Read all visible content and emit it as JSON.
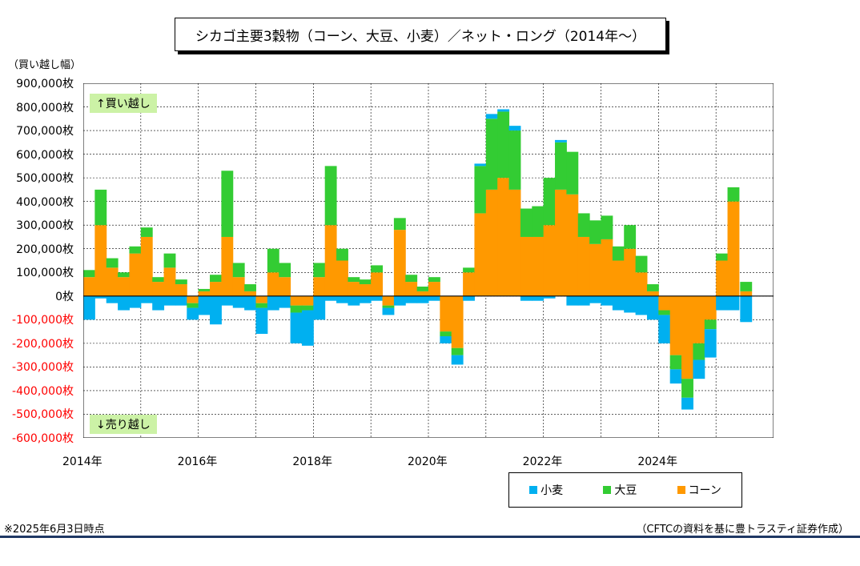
{
  "title": "シカゴ主要3穀物（コーン、大豆、小麦）／ネット・ロング（2014年～）",
  "y_unit_label": "（買い越し幅）",
  "buy_label": "↑買い越し",
  "sell_label": "↓売り越し",
  "footer_note": "※2025年6月3日時点",
  "source": "（CFTCの資料を基に豊トラスティ証券作成）",
  "colors": {
    "wheat": "#00b0f0",
    "soy": "#33cc33",
    "corn": "#ff9900",
    "grid": "#000000"
  },
  "chart_data": {
    "type": "area",
    "stacked": true,
    "ylim": [
      -600000,
      900000
    ],
    "xlim": [
      2014.0,
      2026.0
    ],
    "y_ticks": [
      "900,000枚",
      "800,000枚",
      "700,000枚",
      "600,000枚",
      "500,000枚",
      "400,000枚",
      "300,000枚",
      "200,000枚",
      "100,000枚",
      "0枚",
      "-100,000枚",
      "-200,000枚",
      "-300,000枚",
      "-400,000枚",
      "-500,000枚",
      "-600,000枚"
    ],
    "y_tick_values": [
      900000,
      800000,
      700000,
      600000,
      500000,
      400000,
      300000,
      200000,
      100000,
      0,
      -100000,
      -200000,
      -300000,
      -400000,
      -500000,
      -600000
    ],
    "x_ticks": [
      "2014年",
      "2016年",
      "2018年",
      "2020年",
      "2022年",
      "2024年"
    ],
    "x_tick_values": [
      2014,
      2016,
      2018,
      2020,
      2022,
      2024
    ],
    "legend": [
      "小麦",
      "大豆",
      "コーン"
    ],
    "x": [
      2014.0,
      2014.2,
      2014.4,
      2014.6,
      2014.8,
      2015.0,
      2015.2,
      2015.4,
      2015.6,
      2015.8,
      2016.0,
      2016.2,
      2016.4,
      2016.6,
      2016.8,
      2017.0,
      2017.2,
      2017.4,
      2017.6,
      2017.8,
      2018.0,
      2018.2,
      2018.4,
      2018.6,
      2018.8,
      2019.0,
      2019.2,
      2019.4,
      2019.6,
      2019.8,
      2020.0,
      2020.2,
      2020.4,
      2020.6,
      2020.8,
      2021.0,
      2021.2,
      2021.4,
      2021.6,
      2021.8,
      2022.0,
      2022.2,
      2022.4,
      2022.6,
      2022.8,
      2023.0,
      2023.2,
      2023.4,
      2023.6,
      2023.8,
      2024.0,
      2024.2,
      2024.4,
      2024.6,
      2024.8,
      2025.0,
      2025.2,
      2025.42
    ],
    "series": [
      {
        "name": "コーン",
        "values": [
          80000,
          300000,
          120000,
          80000,
          180000,
          250000,
          60000,
          120000,
          50000,
          -30000,
          20000,
          60000,
          250000,
          80000,
          20000,
          -30000,
          100000,
          80000,
          -40000,
          -40000,
          80000,
          300000,
          150000,
          60000,
          50000,
          100000,
          -40000,
          280000,
          60000,
          20000,
          60000,
          -150000,
          -220000,
          100000,
          350000,
          450000,
          500000,
          450000,
          250000,
          250000,
          300000,
          450000,
          430000,
          250000,
          220000,
          240000,
          150000,
          200000,
          100000,
          20000,
          -60000,
          -250000,
          -350000,
          -200000,
          -100000,
          150000,
          400000,
          20000
        ]
      },
      {
        "name": "大豆",
        "values": [
          30000,
          150000,
          40000,
          20000,
          30000,
          40000,
          20000,
          60000,
          20000,
          -20000,
          10000,
          30000,
          280000,
          60000,
          30000,
          -20000,
          100000,
          60000,
          -30000,
          -20000,
          60000,
          250000,
          50000,
          20000,
          20000,
          30000,
          -10000,
          50000,
          30000,
          20000,
          20000,
          -20000,
          -30000,
          20000,
          200000,
          300000,
          280000,
          250000,
          120000,
          130000,
          200000,
          200000,
          180000,
          100000,
          100000,
          100000,
          60000,
          100000,
          70000,
          30000,
          -20000,
          -60000,
          -80000,
          -70000,
          -40000,
          30000,
          60000,
          40000
        ]
      },
      {
        "name": "小麦",
        "values": [
          -100000,
          -10000,
          -30000,
          -60000,
          -50000,
          -30000,
          -60000,
          -40000,
          -40000,
          -50000,
          -80000,
          -120000,
          -40000,
          -50000,
          -60000,
          -110000,
          -60000,
          -50000,
          -130000,
          -150000,
          -100000,
          -20000,
          -30000,
          -40000,
          -30000,
          -20000,
          -30000,
          -40000,
          -30000,
          -30000,
          -20000,
          -30000,
          -40000,
          -20000,
          10000,
          20000,
          10000,
          20000,
          -20000,
          -20000,
          -10000,
          10000,
          -40000,
          -40000,
          -30000,
          -40000,
          -60000,
          -70000,
          -80000,
          -100000,
          -120000,
          -60000,
          -50000,
          -80000,
          -120000,
          -60000,
          -60000,
          -110000
        ]
      }
    ]
  }
}
